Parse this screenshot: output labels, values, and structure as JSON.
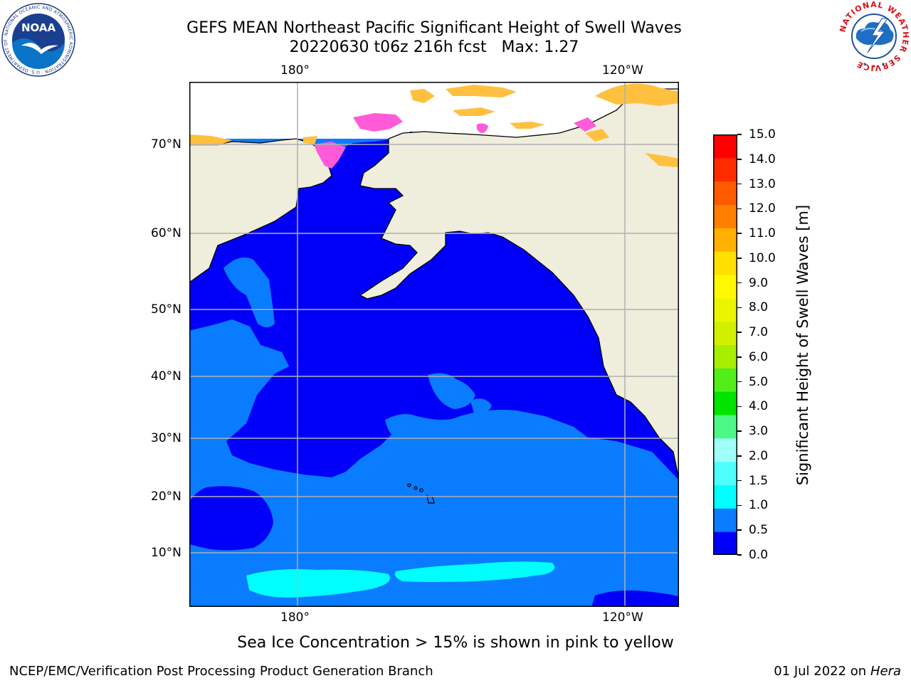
{
  "title": {
    "line1": "GEFS MEAN Northeast Pacific Significant Height of Swell Waves",
    "line2": "20220630 t06z 216h fcst   Max: 1.27"
  },
  "map": {
    "lon_labels": [
      "180°",
      "120°W"
    ],
    "lat_labels": [
      "70°N",
      "60°N",
      "50°N",
      "40°N",
      "30°N",
      "20°N",
      "10°N"
    ],
    "colors": {
      "land": "#efeddc",
      "swell_0_05": "#0000f8",
      "swell_05_10": "#0a7cff",
      "swell_10_15": "#00ffff",
      "ice": "#ff5bd8",
      "ice_low": "#ffc040",
      "grid": "#b0b0b0"
    }
  },
  "colorbar": {
    "label": "Significant Height of Swell Waves [m]",
    "ticks": [
      "15.0",
      "14.0",
      "13.0",
      "12.0",
      "11.0",
      "10.0",
      "9.0",
      "8.0",
      "7.0",
      "6.0",
      "5.0",
      "4.0",
      "3.0",
      "2.0",
      "1.5",
      "1.0",
      "0.5",
      "0.0"
    ],
    "colors": [
      "#0000f8",
      "#0a7cff",
      "#00ffff",
      "#4dfffc",
      "#a0fff8",
      "#4ef888",
      "#00e400",
      "#52ee1a",
      "#a8ee00",
      "#d0f000",
      "#ecf500",
      "#fff800",
      "#ffe000",
      "#ffb000",
      "#ff8000",
      "#ff5a00",
      "#ff2c00",
      "#ff0000"
    ]
  },
  "note": "Sea Ice Concentration > 15% is shown in pink to yellow",
  "footer": {
    "left": "NCEP/EMC/Verification Post Processing Product Generation Branch",
    "right_prefix": "01 Jul 2022 on ",
    "right_italic": "Hera"
  },
  "logos": {
    "noaa": {
      "text": "NOAA",
      "ring": "NATIONAL OCEANIC AND ATMOSPHERIC ADMINISTRATION · U.S. DEPARTMENT OF COMMERCE"
    },
    "nws": {
      "ring": "NATIONAL WEATHER SERVICE"
    }
  }
}
